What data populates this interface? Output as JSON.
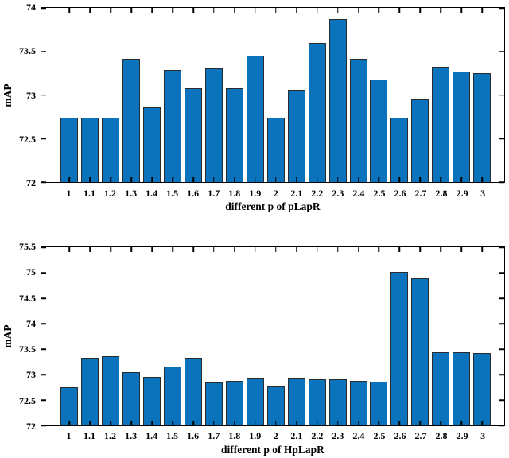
{
  "figure": {
    "background_color": "#ffffff",
    "text_color": "#000000"
  },
  "chart_data": [
    {
      "type": "bar",
      "title": "",
      "xlabel": "different p of pLapR",
      "ylabel": "mAP",
      "categories": [
        "1",
        "1.1",
        "1.2",
        "1.3",
        "1.4",
        "1.5",
        "1.6",
        "1.7",
        "1.8",
        "1.9",
        "2",
        "2.1",
        "2.2",
        "2.3",
        "2.4",
        "2.5",
        "2.6",
        "2.7",
        "2.8",
        "2.9",
        "3"
      ],
      "values": [
        72.74,
        72.74,
        72.74,
        73.42,
        72.86,
        73.29,
        73.08,
        73.31,
        73.08,
        73.45,
        72.74,
        73.06,
        73.6,
        73.87,
        73.42,
        73.18,
        72.74,
        72.95,
        73.32,
        73.27,
        73.25
      ],
      "ylim": [
        72,
        74
      ],
      "yticks": [
        "72",
        "72.5",
        "73",
        "73.5",
        "74"
      ],
      "grid": false,
      "legend": null,
      "bar_color": "#0a73bb",
      "bar_edge_color": "#2b2b2b"
    },
    {
      "type": "bar",
      "title": "",
      "xlabel": "different p of HpLapR",
      "ylabel": "mAP",
      "categories": [
        "1",
        "1.1",
        "1.2",
        "1.3",
        "1.4",
        "1.5",
        "1.6",
        "1.7",
        "1.8",
        "1.9",
        "2",
        "2.1",
        "2.2",
        "2.3",
        "2.4",
        "2.5",
        "2.6",
        "2.7",
        "2.8",
        "2.9",
        "3"
      ],
      "values": [
        72.75,
        73.33,
        73.36,
        73.05,
        72.95,
        73.16,
        73.33,
        72.85,
        72.88,
        72.92,
        72.76,
        72.92,
        72.91,
        72.91,
        72.88,
        72.86,
        75.01,
        74.89,
        73.43,
        73.43,
        73.42
      ],
      "ylim": [
        72,
        75.5
      ],
      "yticks": [
        "72",
        "72.5",
        "73",
        "73.5",
        "74",
        "74.5",
        "75",
        "75.5"
      ],
      "grid": false,
      "legend": null,
      "bar_color": "#0a73bb",
      "bar_edge_color": "#2b2b2b"
    }
  ]
}
